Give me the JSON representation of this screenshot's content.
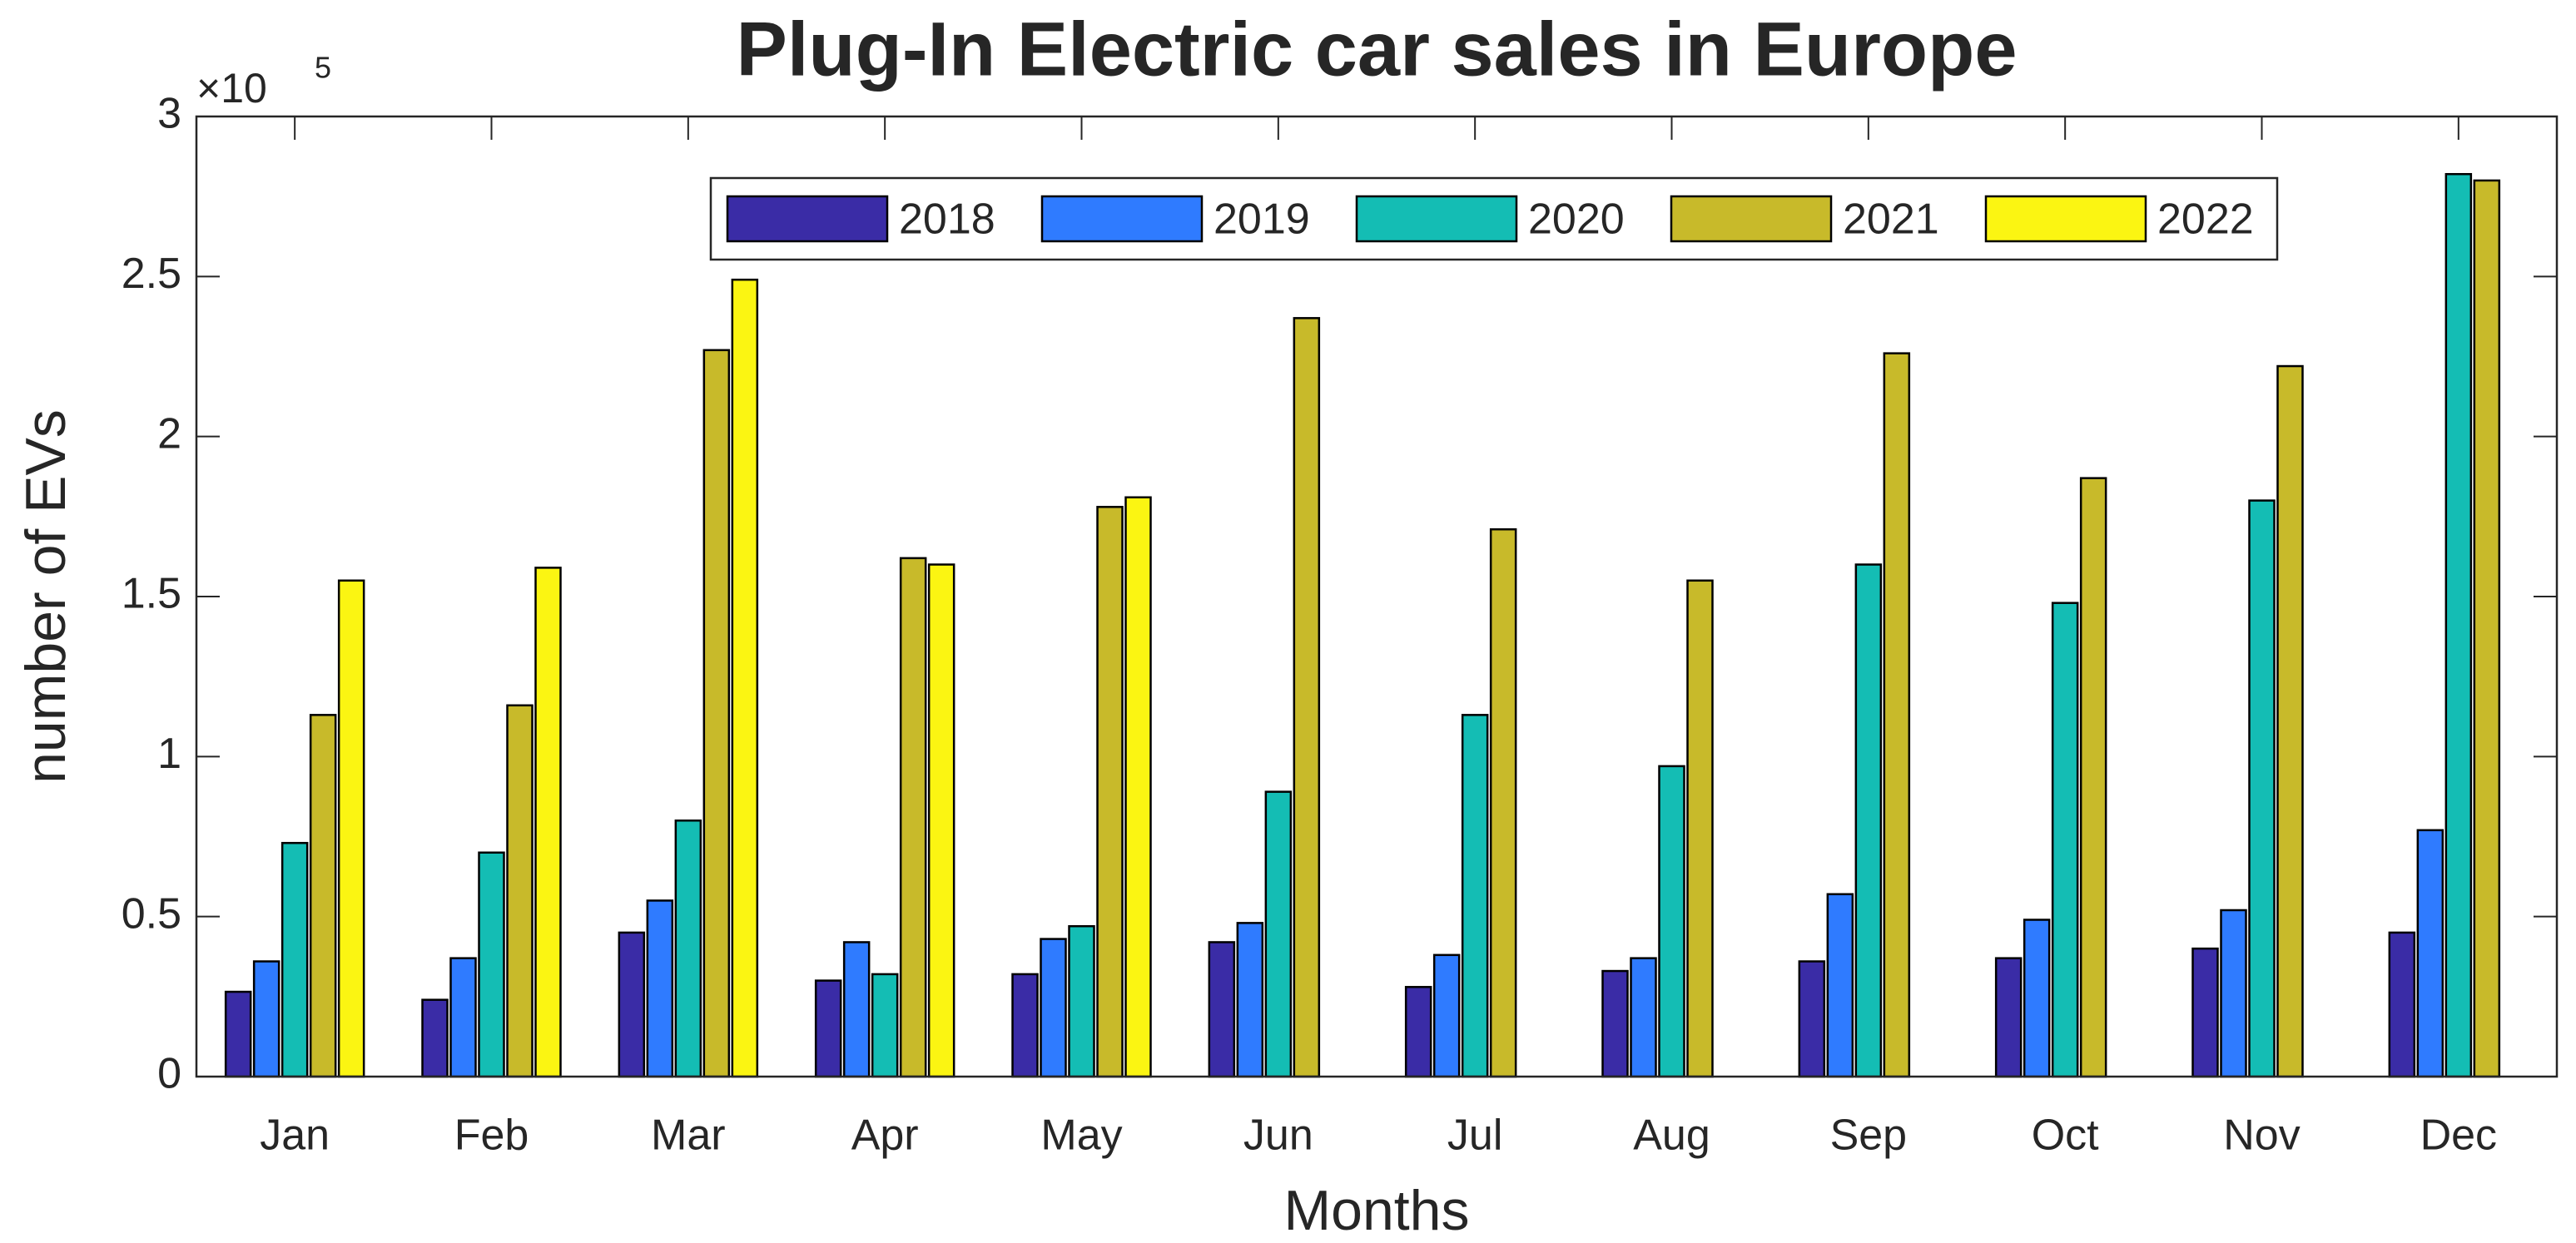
{
  "chart_data": {
    "type": "bar",
    "title": "Plug-In Electric car sales in Europe",
    "x_label": "Months",
    "y_label": "number of EVs",
    "y_multiplier": {
      "base": "×10",
      "exponent": "5"
    },
    "categories": [
      "Jan",
      "Feb",
      "Mar",
      "Apr",
      "May",
      "Jun",
      "Jul",
      "Aug",
      "Sep",
      "Oct",
      "Nov",
      "Dec"
    ],
    "series": [
      {
        "name": "2018",
        "color": "#3a2ca6",
        "values": [
          26500,
          24000,
          45000,
          30000,
          32000,
          42000,
          28000,
          33000,
          36000,
          37000,
          40000,
          45000
        ]
      },
      {
        "name": "2019",
        "color": "#2f7bff",
        "values": [
          36000,
          37000,
          55000,
          42000,
          43000,
          48000,
          38000,
          37000,
          57000,
          49000,
          52000,
          77000
        ]
      },
      {
        "name": "2020",
        "color": "#14bdb4",
        "values": [
          73000,
          70000,
          80000,
          32000,
          47000,
          89000,
          113000,
          97000,
          160000,
          148000,
          180000,
          282000
        ]
      },
      {
        "name": "2021",
        "color": "#c8ba2a",
        "values": [
          113000,
          116000,
          227000,
          162000,
          178000,
          237000,
          171000,
          155000,
          226000,
          187000,
          222000,
          280000
        ]
      },
      {
        "name": "2022",
        "color": "#fbf512",
        "values": [
          155000,
          159000,
          249000,
          160000,
          181000,
          null,
          null,
          null,
          null,
          null,
          null,
          null
        ]
      }
    ],
    "ylim": [
      0,
      300000
    ],
    "yticks": [
      {
        "value": 0,
        "label": "0"
      },
      {
        "value": 50000,
        "label": "0.5"
      },
      {
        "value": 100000,
        "label": "1"
      },
      {
        "value": 150000,
        "label": "1.5"
      },
      {
        "value": 200000,
        "label": "2"
      },
      {
        "value": 250000,
        "label": "2.5"
      },
      {
        "value": 300000,
        "label": "3"
      }
    ],
    "legend": "top"
  }
}
